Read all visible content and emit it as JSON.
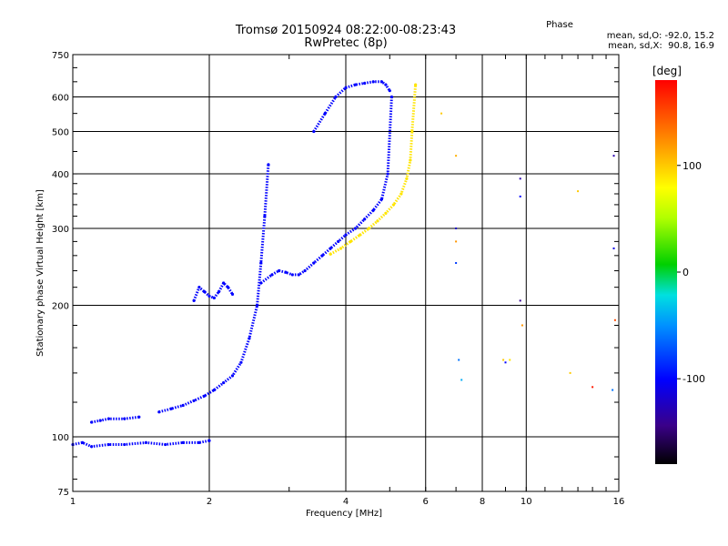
{
  "chart_data": {
    "type": "scatter",
    "title_line1": "Tromsø 20150924 08:22:00-08:23:43",
    "title_line2": "RwPretec (8p)",
    "info": {
      "heading": "Phase",
      "line1": "mean, sd,O: -92.0, 15.2",
      "line2": "mean, sd,X:  90.8, 16.9"
    },
    "xlabel": "Frequency [MHz]",
    "ylabel": "Stationary phase Virtual Height [km]",
    "x_scale": "log",
    "y_scale": "log",
    "xlim": [
      1,
      16
    ],
    "ylim": [
      75,
      750
    ],
    "x_ticks": [
      1,
      2,
      4,
      6,
      8,
      10,
      16
    ],
    "y_ticks": [
      75,
      100,
      200,
      300,
      400,
      500,
      600,
      750
    ],
    "grid": true,
    "colorbar": {
      "label": "[deg]",
      "range": [
        -180,
        180
      ],
      "ticks": [
        100,
        0,
        -100
      ]
    },
    "series": [
      {
        "mode": "O",
        "phase_deg": -100,
        "traces": [
          {
            "x": [
              1.0,
              1.05,
              1.1,
              1.2,
              1.3,
              1.45,
              1.6,
              1.75,
              1.9,
              2.0
            ],
            "y": [
              96,
              97,
              95,
              96,
              96,
              97,
              96,
              97,
              97,
              98
            ]
          },
          {
            "x": [
              1.1,
              1.15,
              1.2,
              1.3,
              1.4
            ],
            "y": [
              108,
              109,
              110,
              110,
              111
            ]
          },
          {
            "x": [
              1.55,
              1.65,
              1.75,
              1.85,
              1.95,
              2.05,
              2.15,
              2.25,
              2.35,
              2.45,
              2.55,
              2.6,
              2.65,
              2.7
            ],
            "y": [
              114,
              116,
              118,
              121,
              124,
              128,
              133,
              138,
              148,
              168,
              200,
              250,
              320,
              420
            ]
          },
          {
            "x": [
              1.85,
              1.9,
              1.95,
              2.0,
              2.05,
              2.1,
              2.15,
              2.2,
              2.25
            ],
            "y": [
              205,
              220,
              215,
              210,
              208,
              215,
              225,
              220,
              212
            ]
          },
          {
            "x": [
              2.6,
              2.75,
              2.85,
              2.95,
              3.05,
              3.15,
              3.25,
              3.4,
              3.55,
              3.7,
              3.85,
              4.0,
              4.2,
              4.4,
              4.6,
              4.8,
              4.95,
              5.05
            ],
            "y": [
              225,
              235,
              240,
              238,
              235,
              235,
              240,
              250,
              260,
              270,
              280,
              290,
              300,
              315,
              330,
              350,
              400,
              600
            ]
          },
          {
            "x": [
              3.4,
              3.6,
              3.8,
              4.0,
              4.2,
              4.4,
              4.6,
              4.8,
              4.9,
              5.0
            ],
            "y": [
              500,
              550,
              600,
              630,
              640,
              645,
              650,
              650,
              640,
              620
            ]
          }
        ]
      },
      {
        "mode": "X",
        "phase_deg": 90,
        "traces": [
          {
            "x": [
              3.7,
              3.9,
              4.1,
              4.3,
              4.5,
              4.7,
              4.9,
              5.1,
              5.3,
              5.45,
              5.55,
              5.6,
              5.7
            ],
            "y": [
              262,
              270,
              280,
              290,
              300,
              312,
              325,
              340,
              360,
              390,
              430,
              500,
              640
            ]
          }
        ]
      },
      {
        "mode": "noise",
        "points": [
          {
            "x": 6.5,
            "y": 550,
            "phase": 100
          },
          {
            "x": 7.0,
            "y": 440,
            "phase": 110
          },
          {
            "x": 7.0,
            "y": 300,
            "phase": -120
          },
          {
            "x": 7.0,
            "y": 280,
            "phase": 120
          },
          {
            "x": 7.0,
            "y": 250,
            "phase": -80
          },
          {
            "x": 7.1,
            "y": 150,
            "phase": -60
          },
          {
            "x": 7.2,
            "y": 135,
            "phase": -40
          },
          {
            "x": 8.9,
            "y": 150,
            "phase": 100
          },
          {
            "x": 9.0,
            "y": 148,
            "phase": -100
          },
          {
            "x": 9.2,
            "y": 150,
            "phase": 90
          },
          {
            "x": 9.7,
            "y": 390,
            "phase": -130
          },
          {
            "x": 9.7,
            "y": 355,
            "phase": -100
          },
          {
            "x": 9.7,
            "y": 205,
            "phase": -140
          },
          {
            "x": 9.8,
            "y": 180,
            "phase": 120
          },
          {
            "x": 12.5,
            "y": 140,
            "phase": 100
          },
          {
            "x": 13.0,
            "y": 365,
            "phase": 100
          },
          {
            "x": 14.0,
            "y": 130,
            "phase": 170
          },
          {
            "x": 15.6,
            "y": 440,
            "phase": -130
          },
          {
            "x": 15.6,
            "y": 270,
            "phase": -110
          },
          {
            "x": 15.7,
            "y": 185,
            "phase": 150
          },
          {
            "x": 15.5,
            "y": 128,
            "phase": -60
          }
        ]
      }
    ]
  }
}
